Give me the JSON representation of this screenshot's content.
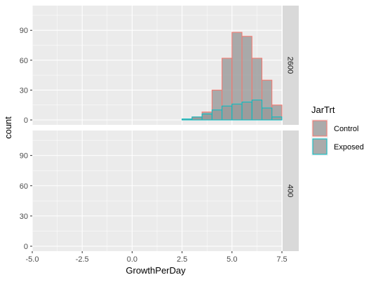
{
  "chart_data": {
    "type": "bar",
    "subtype": "histogram",
    "xlabel": "GrowthPerDay",
    "ylabel": "count",
    "xlim": [
      -5.0,
      7.5
    ],
    "x_ticks": [
      -5.0,
      -2.5,
      0.0,
      2.5,
      5.0,
      7.5
    ],
    "x_tick_labels": [
      "-5.0",
      "-2.5",
      "0.0",
      "2.5",
      "5.0",
      "7.5"
    ],
    "y_ticks": [
      0,
      30,
      60,
      90
    ],
    "y_tick_labels": [
      "0",
      "30",
      "60",
      "90"
    ],
    "ylim": [
      0,
      112
    ],
    "bin_width": 0.5,
    "bin_centers": [
      -4.25,
      -3.75,
      -3.25,
      -2.75,
      -2.25,
      -1.75,
      -1.25,
      -0.75,
      -0.25,
      0.25,
      0.75,
      1.25,
      1.75,
      2.25,
      2.75,
      3.25,
      3.75,
      4.25,
      4.75,
      5.25,
      5.75,
      6.25,
      6.75,
      7.25
    ],
    "legend": {
      "title": "JarTrt",
      "position": "right",
      "entries": [
        {
          "label": "Control",
          "color": "#F8766D"
        },
        {
          "label": "Exposed",
          "color": "#00BFC4"
        }
      ]
    },
    "panels": [
      {
        "strip": "2600",
        "series": [
          {
            "name": "Control",
            "color": "#F8766D",
            "values": [
              0,
              0,
              0,
              0,
              0,
              0,
              0,
              0,
              0,
              0,
              0,
              0,
              0,
              0,
              1,
              3,
              8,
              30,
              62,
              88,
              84,
              62,
              40,
              15
            ]
          },
          {
            "name": "Exposed",
            "color": "#00BFC4",
            "values": [
              0,
              0,
              0,
              0,
              0,
              0,
              0,
              0,
              0,
              0,
              0,
              0,
              0,
              0,
              1,
              3,
              6,
              10,
              14,
              16,
              18,
              20,
              12,
              3
            ]
          }
        ]
      },
      {
        "strip": "400",
        "series": [
          {
            "name": "Control",
            "color": "#F8766D",
            "values": [
              0,
              0,
              0,
              0,
              0,
              0,
              0,
              0,
              0,
              0,
              0,
              0,
              0,
              0,
              0,
              0,
              0,
              0,
              0,
              0,
              0,
              0,
              0,
              0
            ]
          },
          {
            "name": "Exposed",
            "color": "#00BFC4",
            "values": [
              0,
              0,
              0,
              0,
              0,
              0,
              0,
              0,
              0,
              0,
              0,
              0,
              0,
              0,
              0,
              0,
              0,
              0,
              0,
              0,
              0,
              0,
              0,
              0
            ]
          }
        ]
      }
    ]
  }
}
